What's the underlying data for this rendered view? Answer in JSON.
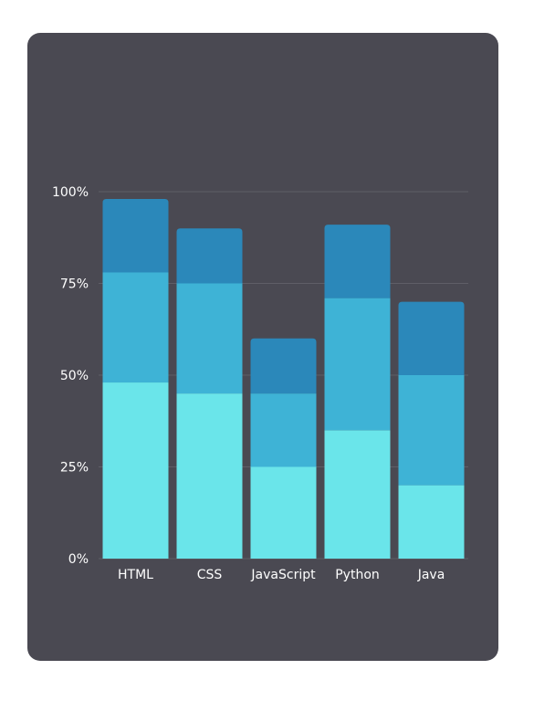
{
  "chart_data": {
    "type": "bar",
    "stacked": true,
    "categories": [
      "HTML",
      "CSS",
      "JavaScript",
      "Python",
      "Java"
    ],
    "series": [
      {
        "color": "#6ae5ea",
        "values": [
          48,
          45,
          25,
          35,
          20
        ]
      },
      {
        "color": "#3eb3d6",
        "values": [
          30,
          30,
          20,
          36,
          30
        ]
      },
      {
        "color": "#2b88ba",
        "values": [
          20,
          15,
          15,
          20,
          20
        ]
      }
    ],
    "yticks": [
      "0%",
      "25%",
      "50%",
      "75%",
      "100%"
    ],
    "ylim": [
      0,
      100
    ],
    "grid": true,
    "legend": "none"
  },
  "colors": {
    "card_background": "#4a4952",
    "page_background": "#ffffff",
    "gridline": "#5f5e67",
    "text": "#ffffff"
  }
}
